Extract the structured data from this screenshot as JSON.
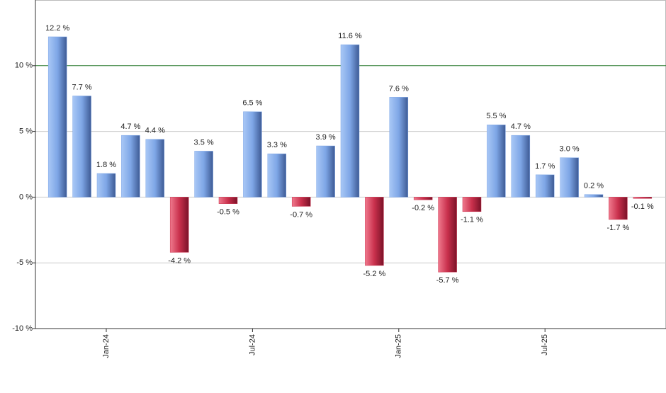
{
  "chart_data": {
    "type": "bar",
    "categories": [
      null,
      null,
      "Jan-24",
      null,
      null,
      null,
      null,
      null,
      "Jul-24",
      null,
      null,
      null,
      null,
      null,
      "Jan-25",
      null,
      null,
      null,
      null,
      null,
      "Jul-25",
      null,
      null,
      null,
      null
    ],
    "values": [
      12.2,
      7.7,
      1.8,
      4.7,
      4.4,
      -4.2,
      3.5,
      -0.5,
      6.5,
      3.3,
      -0.7,
      3.9,
      11.6,
      -5.2,
      7.6,
      -0.2,
      -5.7,
      -1.1,
      5.5,
      4.7,
      1.7,
      3.0,
      0.2,
      -1.7,
      -0.1
    ],
    "value_labels": [
      "12.2 %",
      "7.7 %",
      "1.8 %",
      "4.7 %",
      "4.4 %",
      "-4.2 %",
      "3.5 %",
      "-0.5 %",
      "6.5 %",
      "3.3 %",
      "-0.7 %",
      "3.9 %",
      "11.6 %",
      "-5.2 %",
      "7.6 %",
      "-0.2 %",
      "-5.7 %",
      "-1.1 %",
      "5.5 %",
      "4.7 %",
      "1.7 %",
      "3.0 %",
      "0.2 %",
      "-1.7 %",
      "-0.1 %"
    ],
    "positive_color": "#7ea6e6",
    "negative_color": "#c9304c",
    "ylim": [
      -10,
      15
    ],
    "yticks": [
      {
        "value": -10,
        "label": "-10 %"
      },
      {
        "value": -5,
        "label": "-5 %"
      },
      {
        "value": 0,
        "label": "0 %"
      },
      {
        "value": 5,
        "label": "5 %"
      },
      {
        "value": 10,
        "label": "10 %"
      }
    ],
    "grid": true,
    "reference_line": {
      "value": 10,
      "color": "#2e7d32"
    }
  }
}
